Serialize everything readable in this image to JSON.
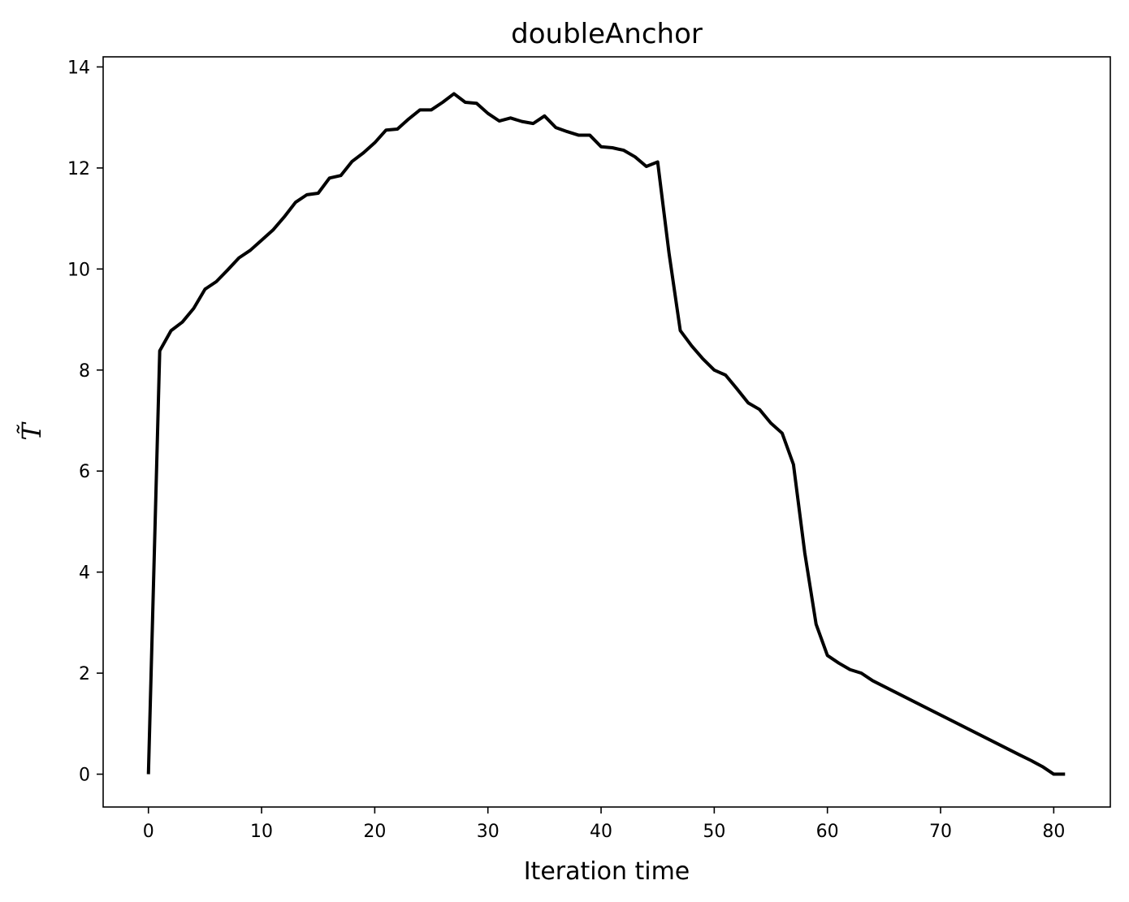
{
  "chart_data": {
    "type": "line",
    "title": "doubleAnchor",
    "xlabel": "Iteration time",
    "ylabel": "T̃",
    "xlim": [
      -4,
      85
    ],
    "ylim": [
      -0.65,
      14.2
    ],
    "xticks": [
      0,
      10,
      20,
      30,
      40,
      50,
      60,
      70,
      80
    ],
    "yticks": [
      0,
      2,
      4,
      6,
      8,
      10,
      12,
      14
    ],
    "grid": false,
    "legend": "none",
    "color": "#000000",
    "x": [
      0,
      1,
      2,
      3,
      4,
      5,
      6,
      7,
      8,
      9,
      10,
      11,
      12,
      13,
      14,
      15,
      16,
      17,
      18,
      19,
      20,
      21,
      22,
      23,
      24,
      25,
      26,
      27,
      28,
      29,
      30,
      31,
      32,
      33,
      34,
      35,
      36,
      37,
      38,
      39,
      40,
      41,
      42,
      43,
      44,
      45,
      46,
      47,
      48,
      49,
      50,
      51,
      52,
      53,
      54,
      55,
      56,
      57,
      58,
      59,
      60,
      61,
      62,
      63,
      64,
      77,
      78,
      79,
      80,
      81
    ],
    "y": [
      0.0,
      8.38,
      8.78,
      8.95,
      9.22,
      9.6,
      9.75,
      9.98,
      10.22,
      10.37,
      10.57,
      10.77,
      11.03,
      11.32,
      11.47,
      11.5,
      11.8,
      11.85,
      12.13,
      12.3,
      12.5,
      12.75,
      12.77,
      12.97,
      13.15,
      13.15,
      13.3,
      13.47,
      13.3,
      13.28,
      13.08,
      12.93,
      12.99,
      12.92,
      12.88,
      13.03,
      12.8,
      12.72,
      12.65,
      12.65,
      12.42,
      12.4,
      12.35,
      12.22,
      12.03,
      12.12,
      10.32,
      8.78,
      8.48,
      8.22,
      8.0,
      7.9,
      7.63,
      7.35,
      7.22,
      6.95,
      6.75,
      6.13,
      4.38,
      2.97,
      2.35,
      2.2,
      2.07,
      2.0,
      1.85,
      0.38,
      0.27,
      0.15,
      0.0,
      0.0
    ]
  }
}
